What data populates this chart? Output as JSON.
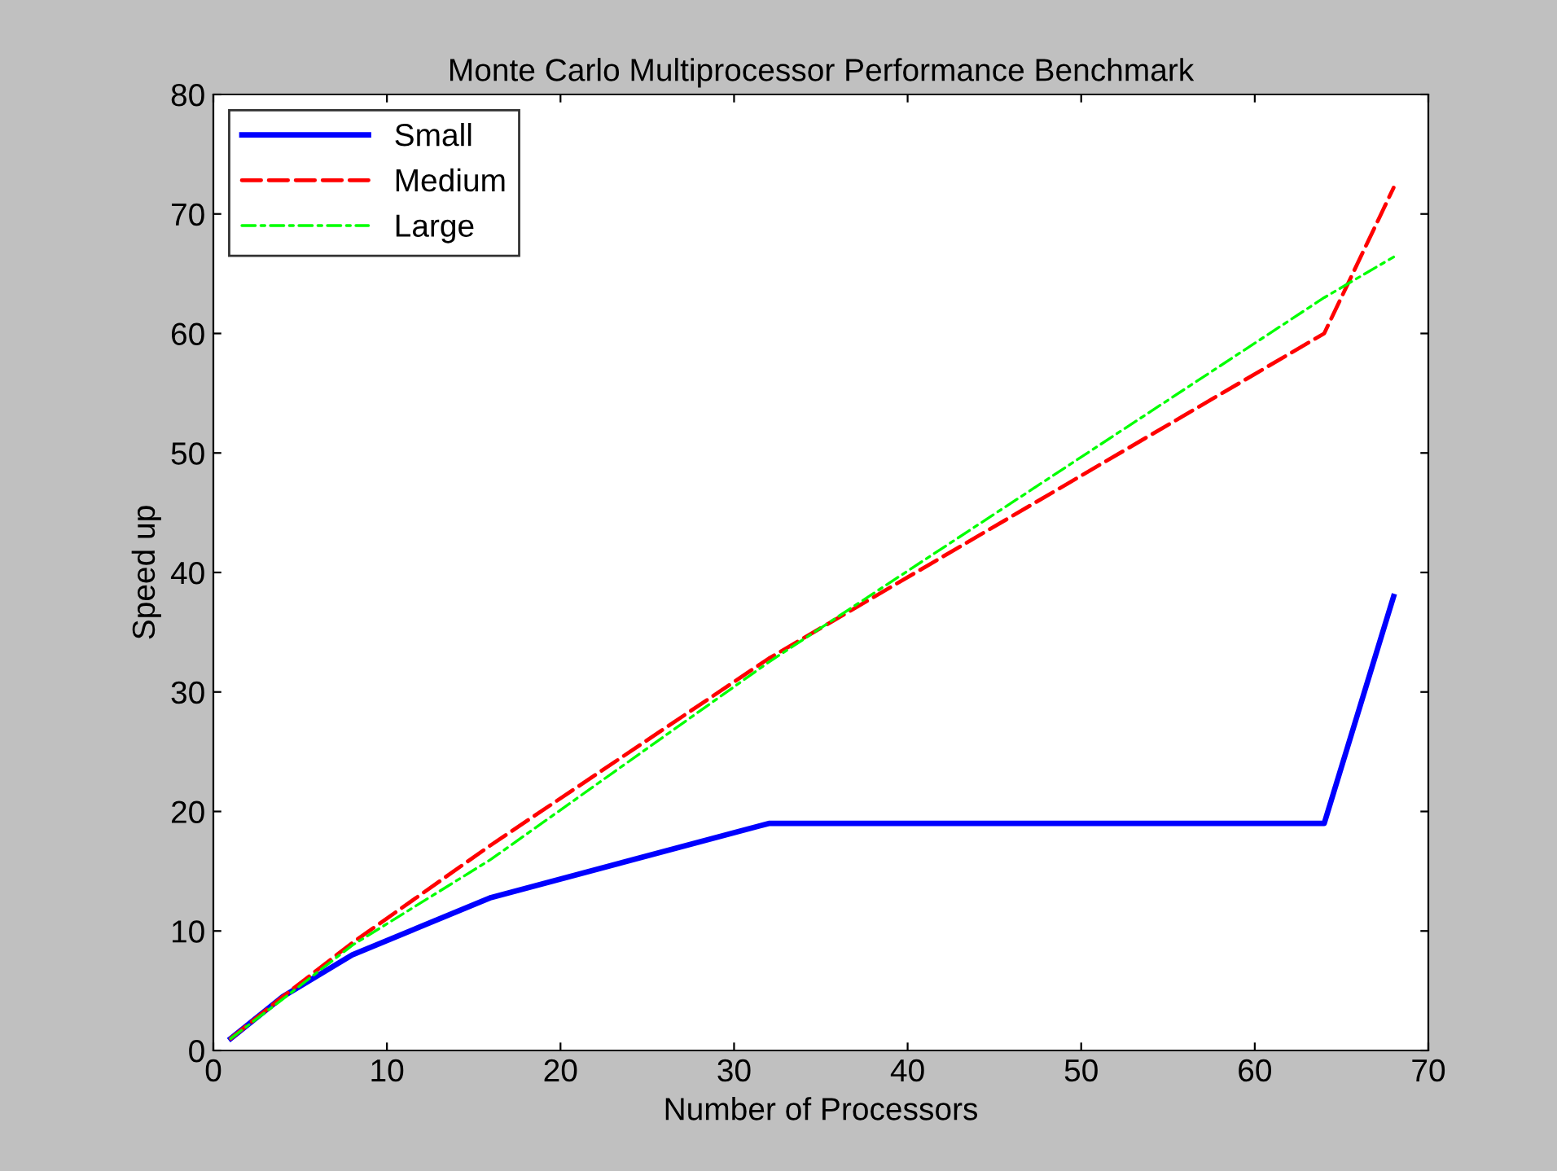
{
  "chart_data": {
    "type": "line",
    "title": "Monte Carlo Multiprocessor Performance Benchmark",
    "xlabel": "Number of Processors",
    "ylabel": "Speed up",
    "x": [
      1,
      4,
      8,
      16,
      32,
      64,
      68
    ],
    "series": [
      {
        "name": "Small",
        "color": "#0000ff",
        "line_style": "solid",
        "values": [
          1,
          4.5,
          8,
          12.8,
          19,
          19,
          38
        ]
      },
      {
        "name": "Medium",
        "color": "#ff0000",
        "line_style": "dashed",
        "values": [
          1,
          4.5,
          9,
          17.2,
          32.8,
          60,
          72.2
        ]
      },
      {
        "name": "Large",
        "color": "#00ff00",
        "line_style": "dashdot",
        "values": [
          1,
          4.3,
          8.8,
          16,
          32.5,
          63,
          66.4
        ]
      }
    ],
    "xlim": [
      0,
      70
    ],
    "xticks": [
      0,
      10,
      20,
      30,
      40,
      50,
      60,
      70
    ],
    "ylim": [
      0,
      80
    ],
    "yticks": [
      0,
      10,
      20,
      30,
      40,
      50,
      60,
      70,
      80
    ],
    "grid": false,
    "legend": "top left",
    "marker": "none"
  }
}
